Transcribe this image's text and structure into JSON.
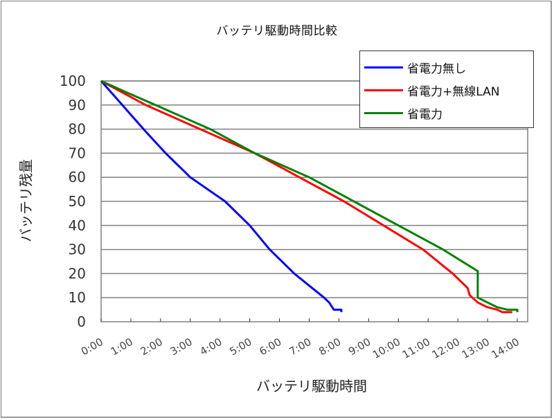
{
  "chart_data": {
    "type": "line",
    "title": "バッテリ駆動時間比較",
    "xlabel": "バッテリ駆動時間",
    "ylabel": "バッテリ残量",
    "ylim": [
      0,
      100
    ],
    "xlim_hours": [
      0,
      14
    ],
    "y_ticks": [
      "0",
      "10",
      "20",
      "30",
      "40",
      "50",
      "60",
      "70",
      "80",
      "90",
      "100"
    ],
    "x_ticks": [
      "0:00",
      "1:00",
      "2:00",
      "3:00",
      "4:00",
      "5:00",
      "6:00",
      "7:00",
      "8:00",
      "9:00",
      "10:00",
      "11:00",
      "12:00",
      "13:00",
      "14:00"
    ],
    "grid": "horizontal",
    "legend_position": "top-right",
    "series": [
      {
        "name": "省電力無し",
        "color": "#0000ff",
        "x_hours": [
          0,
          0.5,
          1.0,
          1.5,
          2.17,
          3.0,
          4.17,
          5.0,
          5.67,
          6.5,
          7.0,
          7.5,
          7.67,
          7.83,
          8.08,
          8.08
        ],
        "values": [
          100,
          93,
          86,
          79,
          70,
          60,
          50,
          40,
          30,
          20,
          15,
          10,
          8,
          5,
          5,
          4
        ]
      },
      {
        "name": "省電力+無線LAN",
        "color": "#ff0000",
        "x_hours": [
          0,
          0.75,
          1.5,
          3.33,
          5.17,
          6.67,
          8.17,
          9.5,
          10.83,
          11.83,
          12.33,
          12.4,
          12.67,
          13.0,
          13.33,
          13.5,
          13.83
        ],
        "values": [
          100,
          95,
          90,
          80,
          70,
          60,
          50,
          40,
          30,
          20,
          14,
          11,
          8,
          6,
          5,
          4,
          4
        ]
      },
      {
        "name": "省電力",
        "color": "#008000",
        "x_hours": [
          0,
          0.9,
          1.83,
          3.67,
          5.17,
          7.0,
          8.5,
          10.0,
          11.5,
          12.67,
          12.67,
          13.0,
          13.33,
          13.67,
          14.0,
          14.0
        ],
        "values": [
          100,
          95,
          90,
          80,
          70,
          60,
          50,
          40,
          30,
          21,
          10,
          8,
          6,
          5,
          5,
          4
        ]
      }
    ]
  }
}
